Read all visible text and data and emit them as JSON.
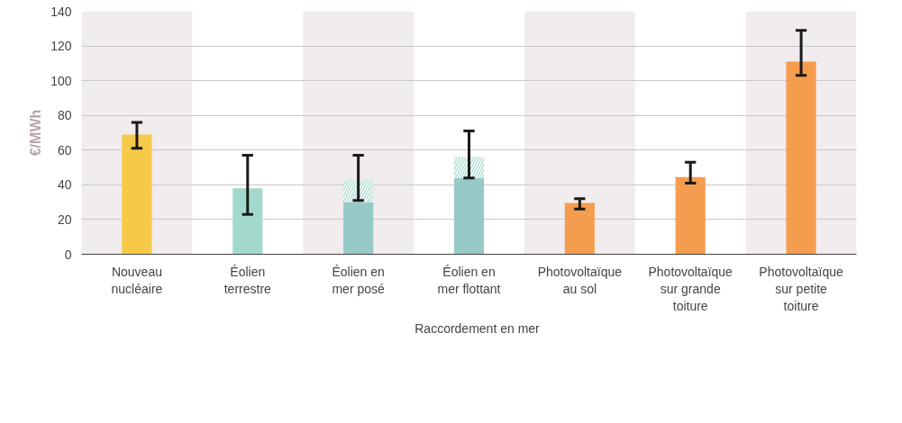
{
  "chart_data": {
    "type": "bar",
    "ylabel": "€/MWh",
    "stacked": true,
    "categories": [
      "Nouveau\nnucléaire",
      "Éolien\nterrestre",
      "Éolien en\nmer posé",
      "Éolien en\nmer flottant",
      "Photovoltaïque\nau sol",
      "Photovoltaïque\nsur grande\ntoiture",
      "Photovoltaïque\nsur petite\ntoiture"
    ],
    "series": [
      {
        "colors": [
          "#f7c948",
          "#a3d9cc",
          "#97c9c7",
          "#97c9c7",
          "#f59d4e",
          "#f59d4e",
          "#f59d4e"
        ],
        "values": [
          69,
          38,
          30,
          44,
          29.5,
          44.5,
          111
        ],
        "errors": [
          [
            61,
            76
          ],
          [
            23,
            57
          ],
          [
            31,
            57
          ],
          [
            44,
            71
          ],
          [
            26,
            32
          ],
          [
            41,
            53
          ],
          [
            103,
            129
          ]
        ]
      },
      {
        "name": "Raccordement en mer",
        "color": "#a3d9cc",
        "values": [
          null,
          null,
          13,
          12,
          null,
          null,
          null
        ]
      }
    ],
    "bands": [
      {
        "axis": "x",
        "from": "Nouveau\nnucléaire",
        "to": "Nouveau\nnucléaire",
        "color": "#f1ecee"
      },
      {
        "axis": "x",
        "from": "Éolien en\nmer posé",
        "to": "Éolien en\nmer posé",
        "color": "#f1ecee"
      },
      {
        "axis": "x",
        "from": "Photovoltaïque\nau sol",
        "to": "Photovoltaïque\nau sol",
        "color": "#f1ecee"
      },
      {
        "axis": "x",
        "from": "Photovoltaïque\nsur petite\ntoiture",
        "to": "Photovoltaïque\nsur petite\ntoiture",
        "color": "#f1ecee"
      }
    ],
    "ylim": [
      0,
      140
    ],
    "yticks": [
      0,
      20,
      40,
      60,
      80,
      100,
      120,
      140
    ],
    "grid": "y",
    "legend": "bottom"
  }
}
